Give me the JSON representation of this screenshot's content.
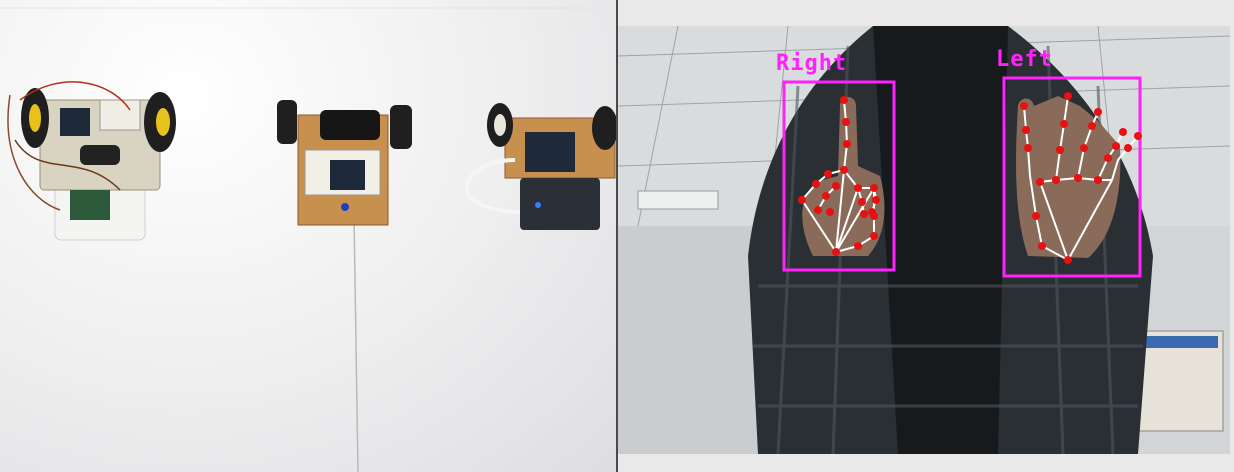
{
  "left_photo": {
    "description_icon": "robot-cars-photo",
    "colors": {
      "floor": "#ececee",
      "wheel_yellow": "#e8c21a",
      "board_wood": "#c8904e",
      "power_bank": "#2b3038"
    }
  },
  "camera_view": {
    "detections": [
      {
        "label": "Right"
      },
      {
        "label": "Left"
      }
    ],
    "colors": {
      "box": "#ff22ff",
      "landmark": "#e81010",
      "connection": "#ffffff"
    }
  }
}
